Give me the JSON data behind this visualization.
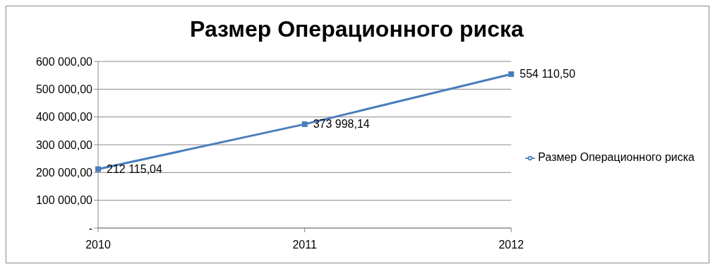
{
  "chart_data": {
    "type": "line",
    "title": "Размер Операционного риска",
    "categories": [
      "2010",
      "2011",
      "2012"
    ],
    "series": [
      {
        "name": "Размер Операционного риска",
        "color": "#4a7ebb",
        "values": [
          212115.04,
          373998.14,
          554110.5
        ],
        "value_labels": [
          "212 115,04",
          "373 998,14",
          "554 110,50"
        ]
      }
    ],
    "ylim": [
      0,
      600000
    ],
    "yticks": [
      {
        "value": 0,
        "label": "-"
      },
      {
        "value": 100000,
        "label": "100 000,00"
      },
      {
        "value": 200000,
        "label": "200 000,00"
      },
      {
        "value": 300000,
        "label": "300 000,00"
      },
      {
        "value": 400000,
        "label": "400 000,00"
      },
      {
        "value": 500000,
        "label": "500 000,00"
      },
      {
        "value": 600000,
        "label": "600 000,00"
      }
    ],
    "grid": "y",
    "legend": "right",
    "marker": "square"
  }
}
